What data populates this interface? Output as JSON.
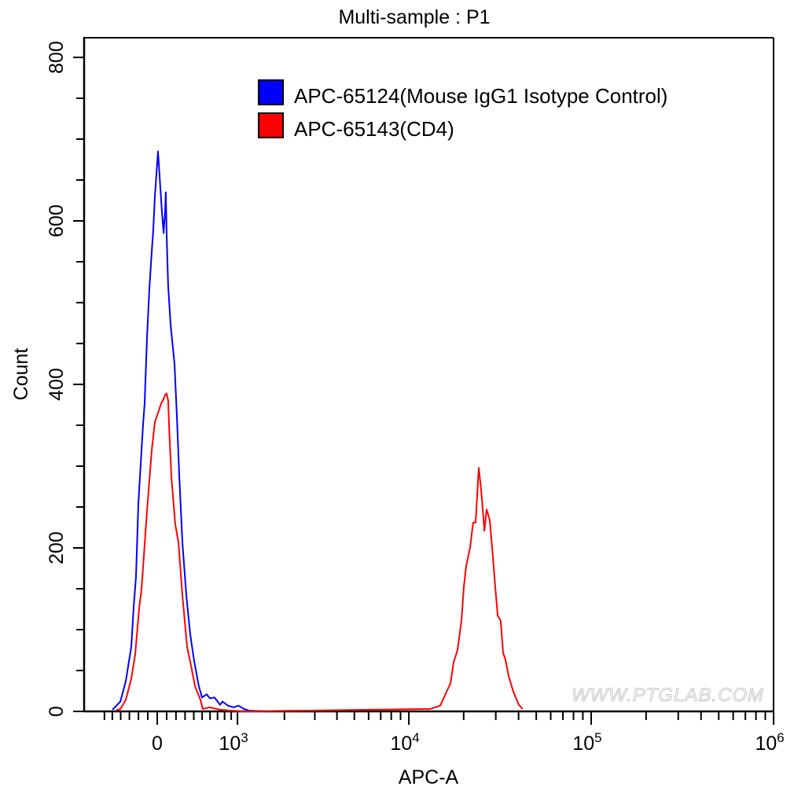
{
  "chart_data": {
    "type": "line",
    "title": "Multi-sample : P1",
    "xlabel": "APC-A",
    "ylabel": "Count",
    "x_scale": "biexponential",
    "xlim": [
      -900,
      1000000
    ],
    "ylim": [
      0,
      825
    ],
    "x_ticks": [
      {
        "value": 0,
        "base": "0",
        "exp": ""
      },
      {
        "value": 1000,
        "base": "10",
        "exp": "3"
      },
      {
        "value": 10000,
        "base": "10",
        "exp": "4"
      },
      {
        "value": 100000,
        "base": "10",
        "exp": "5"
      },
      {
        "value": 1000000,
        "base": "10",
        "exp": "6"
      }
    ],
    "y_ticks": [
      0,
      200,
      400,
      600,
      800
    ],
    "grid": false,
    "legend_position": "top-right",
    "series": [
      {
        "name": "APC-65124(Mouse IgG1 Isotype Control)",
        "color": "#0000ff",
        "x": [
          -499,
          -404,
          -341,
          -279,
          -253,
          -227,
          -201,
          -167,
          -150,
          -133,
          -108,
          -83,
          -58,
          -42,
          -25,
          8,
          33,
          50,
          67,
          83,
          91,
          100,
          116,
          142,
          184,
          210,
          236,
          270,
          314,
          359,
          404,
          460,
          499,
          557,
          598,
          660,
          736,
          770,
          851,
          936,
          1018,
          1109,
          1204,
          1576
        ],
        "y": [
          2,
          12,
          37,
          79,
          127,
          165,
          254,
          319,
          351,
          377,
          457,
          517,
          562,
          588,
          630,
          685,
          640,
          611,
          585,
          611,
          635,
          582,
          521,
          473,
          425,
          361,
          287,
          207,
          142,
          94,
          62,
          31,
          17,
          21,
          16,
          17,
          8,
          12,
          7,
          5,
          7,
          3,
          1,
          0
        ]
      },
      {
        "name": "APC-65143(CD4)",
        "color": "#ff0000",
        "x": [
          -460,
          -404,
          -341,
          -279,
          -236,
          -192,
          -167,
          -108,
          -58,
          -25,
          8,
          42,
          67,
          83,
          100,
          116,
          125,
          150,
          192,
          227,
          270,
          323,
          368,
          414,
          480,
          508,
          598,
          736,
          886,
          1109,
          13070,
          14870,
          16100,
          16920,
          17610,
          18510,
          19450,
          20040,
          20640,
          21670,
          22550,
          23260,
          23720,
          24190,
          24920,
          25690,
          25950,
          26730,
          27790,
          28910,
          29800,
          30720,
          31930,
          32890,
          33900,
          35320,
          37460,
          40130,
          42180
        ],
        "y": [
          1,
          3,
          14,
          40,
          69,
          127,
          149,
          245,
          319,
          354,
          365,
          377,
          382,
          387,
          389,
          380,
          351,
          287,
          229,
          207,
          142,
          79,
          56,
          31,
          14,
          3,
          5,
          2,
          1,
          0,
          3,
          7,
          24,
          34,
          60,
          75,
          111,
          152,
          178,
          200,
          231,
          231,
          264,
          298,
          271,
          236,
          221,
          247,
          234,
          190,
          152,
          117,
          111,
          72,
          63,
          43,
          24,
          8,
          3
        ]
      }
    ]
  },
  "watermark": "WWW.PTGLAB.COM"
}
